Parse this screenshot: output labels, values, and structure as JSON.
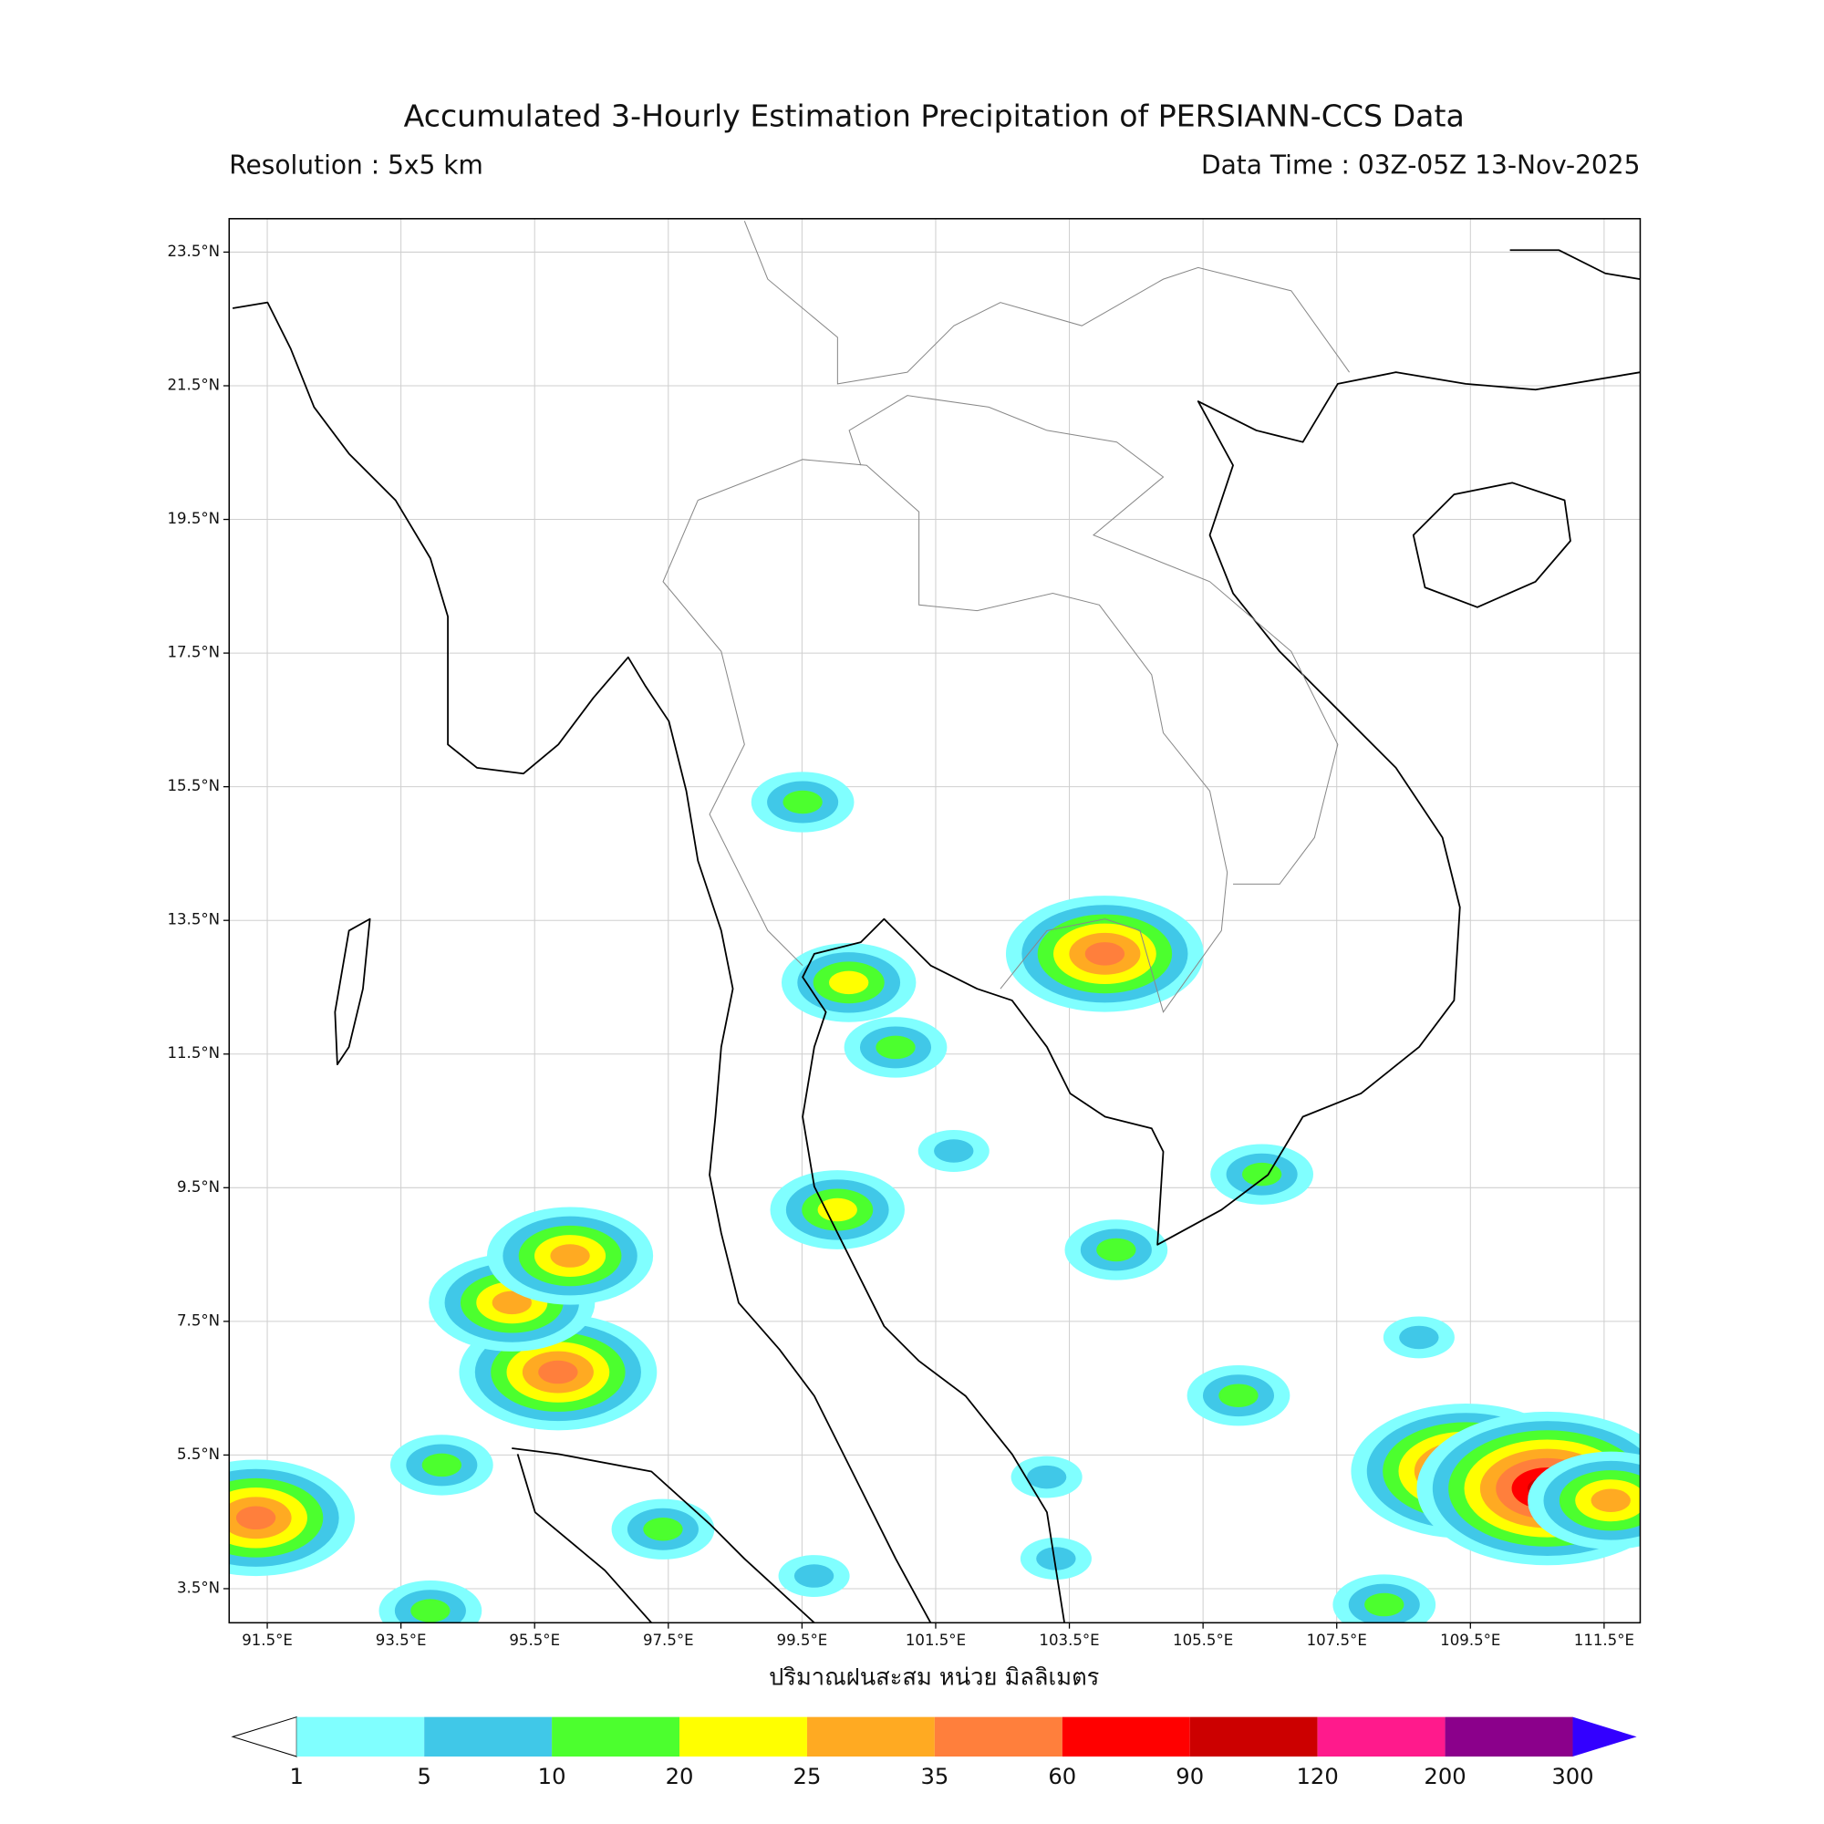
{
  "title": "Accumulated 3-Hourly Estimation Precipitation of PERSIANN-CCS Data",
  "resolution": "Resolution : 5x5 km",
  "data_time": "Data Time : 03Z-05Z 13-Nov-2025",
  "chart_data": {
    "type": "precip-map",
    "xlabel": "ปริมาณฝนสะสม หน่วย มิลลิเมตร",
    "xlim": [
      90.93,
      112.04
    ],
    "ylim": [
      2.99,
      24.0
    ],
    "grid": true,
    "xticks": [
      {
        "value": 91.5,
        "label": "91.5°E"
      },
      {
        "value": 93.5,
        "label": "93.5°E"
      },
      {
        "value": 95.5,
        "label": "95.5°E"
      },
      {
        "value": 97.5,
        "label": "97.5°E"
      },
      {
        "value": 99.5,
        "label": "99.5°E"
      },
      {
        "value": 101.5,
        "label": "101.5°E"
      },
      {
        "value": 103.5,
        "label": "103.5°E"
      },
      {
        "value": 105.5,
        "label": "105.5°E"
      },
      {
        "value": 107.5,
        "label": "107.5°E"
      },
      {
        "value": 109.5,
        "label": "109.5°E"
      },
      {
        "value": 111.5,
        "label": "111.5°E"
      }
    ],
    "yticks": [
      {
        "value": 23.5,
        "label": "23.5°N"
      },
      {
        "value": 21.5,
        "label": "21.5°N"
      },
      {
        "value": 19.5,
        "label": "19.5°N"
      },
      {
        "value": 17.5,
        "label": "17.5°N"
      },
      {
        "value": 15.5,
        "label": "15.5°N"
      },
      {
        "value": 13.5,
        "label": "13.5°N"
      },
      {
        "value": 11.5,
        "label": "11.5°N"
      },
      {
        "value": 9.5,
        "label": "9.5°N"
      },
      {
        "value": 7.5,
        "label": "7.5°N"
      },
      {
        "value": 5.5,
        "label": "5.5°N"
      },
      {
        "value": 3.5,
        "label": "3.5°N"
      }
    ],
    "colorbar": {
      "levels": [
        1,
        5,
        10,
        20,
        25,
        35,
        60,
        90,
        120,
        200,
        300
      ],
      "colors": [
        "#80ffff",
        "#40c8e8",
        "#4cff2e",
        "#ffff00",
        "#ffaa22",
        "#ff7f3c",
        "#ff0000",
        "#cc0000",
        "#ff1a8c",
        "#8b008b",
        "#3300ff"
      ]
    },
    "cells": {
      "lon": [
        109.43,
        110.65,
        111.6,
        91.33,
        97.42,
        95.85,
        95.16,
        96.03,
        104.03,
        100.2,
        100.03,
        99.51,
        106.03,
        103.16,
        100.9,
        106.38,
        104.2,
        108.73,
        93.94,
        99.68,
        101.77,
        94.11,
        108.21,
        103.3
      ],
      "lat": [
        5.26,
        5.0,
        4.82,
        4.56,
        4.39,
        6.74,
        7.78,
        8.48,
        13.0,
        12.57,
        9.17,
        15.27,
        6.39,
        5.17,
        11.6,
        9.7,
        8.57,
        7.26,
        3.17,
        3.69,
        10.05,
        5.35,
        3.26,
        3.95
      ],
      "value": [
        80,
        90,
        30,
        40,
        15,
        35,
        30,
        25,
        40,
        22,
        22,
        12,
        15,
        8,
        12,
        12,
        12,
        8,
        15,
        8,
        8,
        10,
        10,
        6
      ]
    }
  }
}
